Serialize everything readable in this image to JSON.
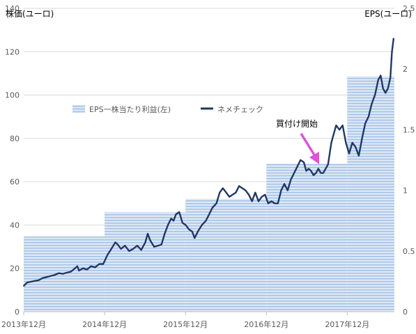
{
  "chart_data": {
    "type": "line",
    "title": "",
    "y_left_label": "株価(ユーロ)",
    "y_right_label": "EPS(ユーロ)",
    "y_left_range": [
      0,
      140
    ],
    "y_left_ticks": [
      0,
      20,
      40,
      60,
      80,
      100,
      120,
      140
    ],
    "y_right_range": [
      0,
      2.5
    ],
    "y_right_ticks": [
      0,
      0.5,
      1,
      1.5,
      2,
      2.5
    ],
    "x_range": [
      2013.917,
      2018.5
    ],
    "x_tick_labels": [
      {
        "x": 2013.917,
        "label": "2013年12月"
      },
      {
        "x": 2014.917,
        "label": "2014年12月"
      },
      {
        "x": 2015.917,
        "label": "2015年12月"
      },
      {
        "x": 2016.917,
        "label": "2016年12月"
      },
      {
        "x": 2017.917,
        "label": "2017年12月"
      }
    ],
    "gridlines": true,
    "legend_position": "center-left",
    "legend": {
      "eps_label": "EPS一株当たり利益(左)",
      "price_label": "ネメチェック"
    },
    "colors": {
      "price_line": "#1f3864",
      "eps_fill": "#d6e4f5",
      "eps_stripe": "#9fbde3",
      "annotation_arrow": "#e052d6",
      "gridline": "#d9d9d9"
    },
    "series": [
      {
        "name": "EPS一株当たり利益(左)",
        "axis": "right",
        "kind": "step-area",
        "steps": [
          {
            "x_start": 2013.917,
            "x_end": 2014.917,
            "value": 0.62
          },
          {
            "x_start": 2014.917,
            "x_end": 2015.917,
            "value": 0.82
          },
          {
            "x_start": 2015.917,
            "x_end": 2016.917,
            "value": 0.93
          },
          {
            "x_start": 2016.917,
            "x_end": 2017.917,
            "value": 1.22
          },
          {
            "x_start": 2017.917,
            "x_end": 2018.5,
            "value": 1.94
          }
        ]
      },
      {
        "name": "ネメチェック",
        "axis": "left",
        "kind": "line",
        "points": [
          [
            2013.92,
            12
          ],
          [
            2013.96,
            13.5
          ],
          [
            2014.0,
            13.8
          ],
          [
            2014.05,
            14.2
          ],
          [
            2014.1,
            14.5
          ],
          [
            2014.15,
            15.5
          ],
          [
            2014.2,
            16
          ],
          [
            2014.25,
            16.5
          ],
          [
            2014.3,
            17
          ],
          [
            2014.35,
            17.8
          ],
          [
            2014.4,
            17.5
          ],
          [
            2014.45,
            18
          ],
          [
            2014.5,
            18.5
          ],
          [
            2014.55,
            20
          ],
          [
            2014.58,
            21
          ],
          [
            2014.6,
            19
          ],
          [
            2014.65,
            20
          ],
          [
            2014.7,
            19.5
          ],
          [
            2014.75,
            21
          ],
          [
            2014.8,
            20.5
          ],
          [
            2014.85,
            22
          ],
          [
            2014.9,
            22
          ],
          [
            2014.95,
            26
          ],
          [
            2015.0,
            29
          ],
          [
            2015.05,
            32
          ],
          [
            2015.08,
            31
          ],
          [
            2015.12,
            29
          ],
          [
            2015.17,
            30.5
          ],
          [
            2015.22,
            28
          ],
          [
            2015.27,
            29
          ],
          [
            2015.32,
            30.5
          ],
          [
            2015.37,
            28.5
          ],
          [
            2015.42,
            32
          ],
          [
            2015.45,
            36
          ],
          [
            2015.48,
            33
          ],
          [
            2015.53,
            30
          ],
          [
            2015.58,
            30.5
          ],
          [
            2015.62,
            31
          ],
          [
            2015.66,
            36
          ],
          [
            2015.7,
            40
          ],
          [
            2015.74,
            43
          ],
          [
            2015.77,
            42
          ],
          [
            2015.8,
            45
          ],
          [
            2015.84,
            46
          ],
          [
            2015.88,
            41
          ],
          [
            2015.92,
            40
          ],
          [
            2015.96,
            38
          ],
          [
            2016.0,
            37
          ],
          [
            2016.03,
            34
          ],
          [
            2016.07,
            37
          ],
          [
            2016.12,
            40
          ],
          [
            2016.17,
            42
          ],
          [
            2016.21,
            45
          ],
          [
            2016.25,
            48
          ],
          [
            2016.3,
            50
          ],
          [
            2016.34,
            55
          ],
          [
            2016.38,
            57
          ],
          [
            2016.42,
            55
          ],
          [
            2016.46,
            53
          ],
          [
            2016.5,
            54
          ],
          [
            2016.54,
            55
          ],
          [
            2016.58,
            58
          ],
          [
            2016.62,
            57
          ],
          [
            2016.66,
            56
          ],
          [
            2016.7,
            54
          ],
          [
            2016.74,
            51
          ],
          [
            2016.78,
            55
          ],
          [
            2016.82,
            51
          ],
          [
            2016.86,
            53
          ],
          [
            2016.9,
            54
          ],
          [
            2016.94,
            50
          ],
          [
            2016.98,
            51
          ],
          [
            2017.02,
            50
          ],
          [
            2017.06,
            50
          ],
          [
            2017.1,
            56
          ],
          [
            2017.14,
            59
          ],
          [
            2017.18,
            56
          ],
          [
            2017.22,
            61
          ],
          [
            2017.26,
            64
          ],
          [
            2017.3,
            67
          ],
          [
            2017.34,
            70
          ],
          [
            2017.38,
            69
          ],
          [
            2017.41,
            65
          ],
          [
            2017.44,
            66
          ],
          [
            2017.47,
            65
          ],
          [
            2017.5,
            63
          ],
          [
            2017.53,
            64
          ],
          [
            2017.56,
            66
          ],
          [
            2017.59,
            64
          ],
          [
            2017.62,
            64
          ],
          [
            2017.65,
            66
          ],
          [
            2017.68,
            68
          ],
          [
            2017.72,
            78
          ],
          [
            2017.75,
            82
          ],
          [
            2017.78,
            86
          ],
          [
            2017.82,
            84
          ],
          [
            2017.86,
            86
          ],
          [
            2017.9,
            78
          ],
          [
            2017.94,
            73
          ],
          [
            2017.98,
            78
          ],
          [
            2018.02,
            76
          ],
          [
            2018.06,
            72
          ],
          [
            2018.1,
            80
          ],
          [
            2018.14,
            87
          ],
          [
            2018.18,
            90
          ],
          [
            2018.22,
            96
          ],
          [
            2018.26,
            100
          ],
          [
            2018.3,
            107
          ],
          [
            2018.33,
            109
          ],
          [
            2018.36,
            103
          ],
          [
            2018.39,
            101
          ],
          [
            2018.42,
            103
          ],
          [
            2018.45,
            108
          ],
          [
            2018.47,
            120
          ],
          [
            2018.49,
            126
          ]
        ]
      }
    ],
    "annotations": [
      {
        "text": "買付け開始",
        "arrow_to": [
          2017.58,
          65
        ]
      }
    ]
  }
}
